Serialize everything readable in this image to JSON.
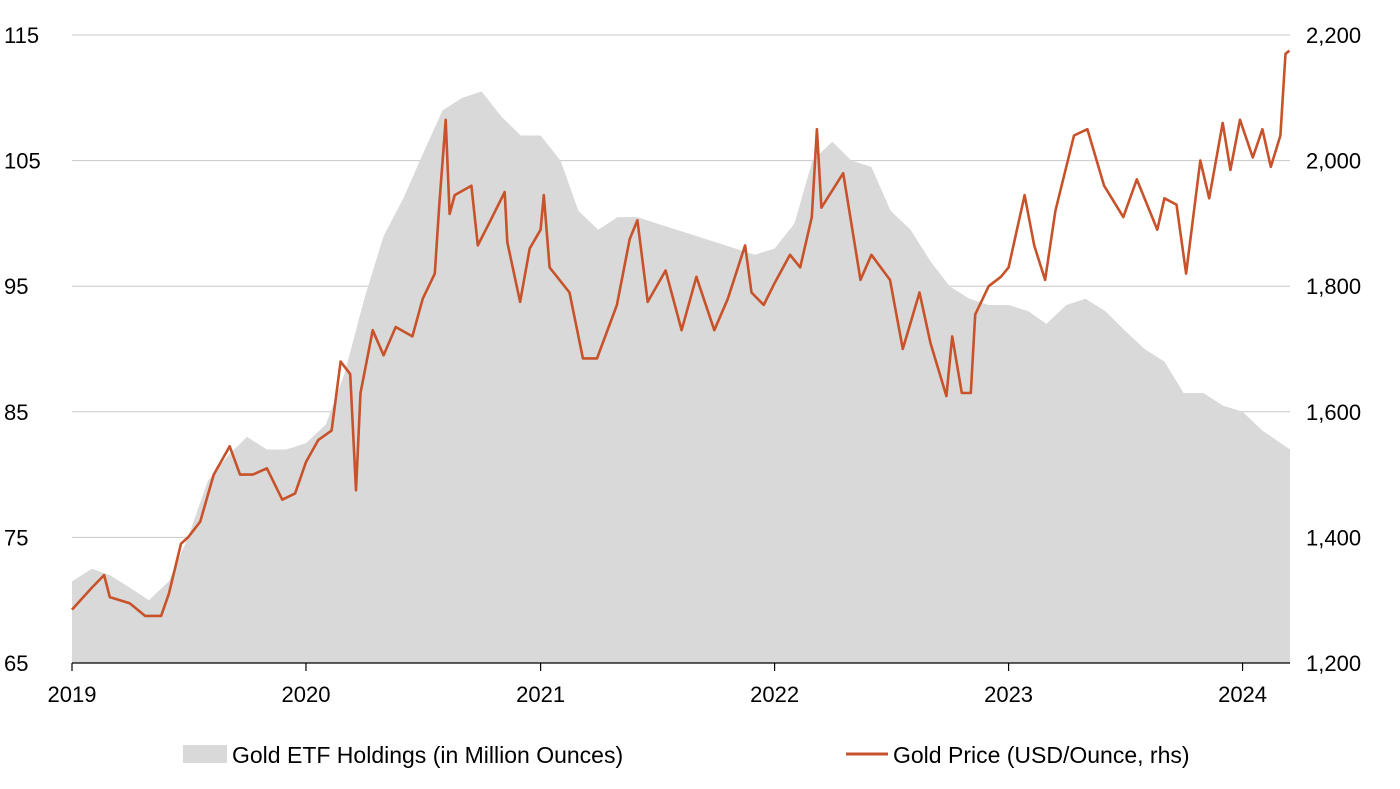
{
  "chart_data": {
    "type": "area+line",
    "title": "",
    "x_ticks": [
      "2019",
      "2020",
      "2021",
      "2022",
      "2023",
      "2024"
    ],
    "x_range": [
      "2019-01-01",
      "2024-03-15"
    ],
    "y_left": {
      "ticks": [
        "65",
        "75",
        "85",
        "95",
        "105",
        "115"
      ],
      "range": [
        65,
        115
      ]
    },
    "y_right": {
      "ticks": [
        "1,200",
        "1,400",
        "1,600",
        "1,800",
        "2,000",
        "2,200"
      ],
      "range": [
        1200,
        2200
      ]
    },
    "grid": "horizontal",
    "legend_position": "bottom",
    "series": [
      {
        "name": "Gold ETF Holdings (in Million Ounces)",
        "type": "area",
        "axis": "left",
        "color": "#d9d9d9",
        "points": [
          [
            "2019-01-01",
            71.5
          ],
          [
            "2019-02-01",
            72.5
          ],
          [
            "2019-03-01",
            72.0
          ],
          [
            "2019-04-01",
            71.0
          ],
          [
            "2019-05-01",
            70.0
          ],
          [
            "2019-06-01",
            71.5
          ],
          [
            "2019-07-01",
            75.0
          ],
          [
            "2019-08-01",
            79.5
          ],
          [
            "2019-09-01",
            81.5
          ],
          [
            "2019-10-01",
            83.0
          ],
          [
            "2019-11-01",
            82.0
          ],
          [
            "2019-12-01",
            82.0
          ],
          [
            "2020-01-01",
            82.5
          ],
          [
            "2020-02-01",
            84.0
          ],
          [
            "2020-03-01",
            88.0
          ],
          [
            "2020-04-01",
            94.0
          ],
          [
            "2020-05-01",
            99.0
          ],
          [
            "2020-06-01",
            102.0
          ],
          [
            "2020-07-01",
            105.5
          ],
          [
            "2020-08-01",
            109.0
          ],
          [
            "2020-09-01",
            110.0
          ],
          [
            "2020-10-01",
            110.5
          ],
          [
            "2020-11-01",
            108.5
          ],
          [
            "2020-12-01",
            107.0
          ],
          [
            "2021-01-01",
            107.0
          ],
          [
            "2021-02-01",
            105.0
          ],
          [
            "2021-03-01",
            101.0
          ],
          [
            "2021-04-01",
            99.5
          ],
          [
            "2021-05-01",
            100.5
          ],
          [
            "2021-06-01",
            100.5
          ],
          [
            "2021-07-01",
            100.0
          ],
          [
            "2021-08-01",
            99.5
          ],
          [
            "2021-09-01",
            99.0
          ],
          [
            "2021-10-01",
            98.5
          ],
          [
            "2021-11-01",
            98.0
          ],
          [
            "2021-12-01",
            97.5
          ],
          [
            "2022-01-01",
            98.0
          ],
          [
            "2022-02-01",
            100.0
          ],
          [
            "2022-03-01",
            105.0
          ],
          [
            "2022-04-01",
            106.5
          ],
          [
            "2022-05-01",
            105.0
          ],
          [
            "2022-06-01",
            104.5
          ],
          [
            "2022-07-01",
            101.0
          ],
          [
            "2022-08-01",
            99.5
          ],
          [
            "2022-09-01",
            97.0
          ],
          [
            "2022-10-01",
            95.0
          ],
          [
            "2022-11-01",
            94.0
          ],
          [
            "2022-12-01",
            93.5
          ],
          [
            "2023-01-01",
            93.5
          ],
          [
            "2023-02-01",
            93.0
          ],
          [
            "2023-03-01",
            92.0
          ],
          [
            "2023-04-01",
            93.5
          ],
          [
            "2023-05-01",
            94.0
          ],
          [
            "2023-06-01",
            93.0
          ],
          [
            "2023-07-01",
            91.5
          ],
          [
            "2023-08-01",
            90.0
          ],
          [
            "2023-09-01",
            89.0
          ],
          [
            "2023-10-01",
            86.5
          ],
          [
            "2023-11-01",
            86.5
          ],
          [
            "2023-12-01",
            85.5
          ],
          [
            "2024-01-01",
            85.0
          ],
          [
            "2024-02-01",
            83.5
          ],
          [
            "2024-03-15",
            82.0
          ]
        ]
      },
      {
        "name": "Gold Price (USD/Ounce, rhs)",
        "type": "line",
        "axis": "right",
        "color": "#c8522a",
        "points": [
          [
            "2019-01-01",
            1285
          ],
          [
            "2019-02-01",
            1320
          ],
          [
            "2019-02-20",
            1340
          ],
          [
            "2019-03-01",
            1305
          ],
          [
            "2019-04-01",
            1295
          ],
          [
            "2019-04-25",
            1275
          ],
          [
            "2019-05-20",
            1275
          ],
          [
            "2019-06-01",
            1310
          ],
          [
            "2019-06-20",
            1390
          ],
          [
            "2019-07-01",
            1400
          ],
          [
            "2019-07-20",
            1425
          ],
          [
            "2019-08-10",
            1500
          ],
          [
            "2019-09-04",
            1545
          ],
          [
            "2019-09-20",
            1500
          ],
          [
            "2019-10-10",
            1500
          ],
          [
            "2019-11-01",
            1510
          ],
          [
            "2019-11-25",
            1460
          ],
          [
            "2019-12-15",
            1470
          ],
          [
            "2020-01-01",
            1520
          ],
          [
            "2020-01-20",
            1555
          ],
          [
            "2020-02-10",
            1570
          ],
          [
            "2020-02-24",
            1680
          ],
          [
            "2020-03-10",
            1660
          ],
          [
            "2020-03-19",
            1475
          ],
          [
            "2020-03-26",
            1630
          ],
          [
            "2020-04-14",
            1730
          ],
          [
            "2020-05-01",
            1690
          ],
          [
            "2020-05-20",
            1735
          ],
          [
            "2020-06-15",
            1720
          ],
          [
            "2020-07-01",
            1780
          ],
          [
            "2020-07-20",
            1820
          ],
          [
            "2020-07-27",
            1930
          ],
          [
            "2020-08-06",
            2065
          ],
          [
            "2020-08-12",
            1915
          ],
          [
            "2020-08-20",
            1945
          ],
          [
            "2020-09-15",
            1960
          ],
          [
            "2020-09-25",
            1865
          ],
          [
            "2020-10-15",
            1905
          ],
          [
            "2020-11-06",
            1950
          ],
          [
            "2020-11-10",
            1870
          ],
          [
            "2020-11-30",
            1775
          ],
          [
            "2020-12-15",
            1860
          ],
          [
            "2021-01-01",
            1890
          ],
          [
            "2021-01-06",
            1945
          ],
          [
            "2021-01-15",
            1830
          ],
          [
            "2021-02-15",
            1790
          ],
          [
            "2021-03-08",
            1685
          ],
          [
            "2021-03-30",
            1685
          ],
          [
            "2021-04-30",
            1770
          ],
          [
            "2021-05-20",
            1875
          ],
          [
            "2021-06-01",
            1905
          ],
          [
            "2021-06-17",
            1775
          ],
          [
            "2021-07-15",
            1825
          ],
          [
            "2021-08-09",
            1730
          ],
          [
            "2021-09-01",
            1815
          ],
          [
            "2021-09-29",
            1730
          ],
          [
            "2021-10-20",
            1780
          ],
          [
            "2021-11-16",
            1865
          ],
          [
            "2021-11-26",
            1790
          ],
          [
            "2021-12-15",
            1770
          ],
          [
            "2022-01-01",
            1805
          ],
          [
            "2022-01-25",
            1850
          ],
          [
            "2022-02-10",
            1830
          ],
          [
            "2022-02-28",
            1910
          ],
          [
            "2022-03-08",
            2050
          ],
          [
            "2022-03-15",
            1925
          ],
          [
            "2022-04-18",
            1980
          ],
          [
            "2022-05-15",
            1810
          ],
          [
            "2022-06-01",
            1850
          ],
          [
            "2022-06-30",
            1810
          ],
          [
            "2022-07-20",
            1700
          ],
          [
            "2022-08-15",
            1790
          ],
          [
            "2022-09-01",
            1710
          ],
          [
            "2022-09-26",
            1625
          ],
          [
            "2022-10-05",
            1720
          ],
          [
            "2022-10-20",
            1630
          ],
          [
            "2022-11-03",
            1630
          ],
          [
            "2022-11-10",
            1755
          ],
          [
            "2022-12-01",
            1800
          ],
          [
            "2022-12-20",
            1815
          ],
          [
            "2023-01-01",
            1830
          ],
          [
            "2023-01-26",
            1945
          ],
          [
            "2023-02-10",
            1865
          ],
          [
            "2023-02-27",
            1810
          ],
          [
            "2023-03-15",
            1920
          ],
          [
            "2023-04-13",
            2040
          ],
          [
            "2023-05-04",
            2050
          ],
          [
            "2023-05-30",
            1960
          ],
          [
            "2023-06-29",
            1910
          ],
          [
            "2023-07-20",
            1970
          ],
          [
            "2023-08-21",
            1890
          ],
          [
            "2023-09-01",
            1940
          ],
          [
            "2023-09-20",
            1930
          ],
          [
            "2023-10-05",
            1820
          ],
          [
            "2023-10-27",
            2000
          ],
          [
            "2023-11-10",
            1940
          ],
          [
            "2023-12-01",
            2060
          ],
          [
            "2023-12-13",
            1985
          ],
          [
            "2023-12-28",
            2065
          ],
          [
            "2024-01-17",
            2005
          ],
          [
            "2024-02-01",
            2050
          ],
          [
            "2024-02-14",
            1990
          ],
          [
            "2024-02-29",
            2040
          ],
          [
            "2024-03-08",
            2170
          ],
          [
            "2024-03-14",
            2175
          ]
        ]
      }
    ]
  }
}
